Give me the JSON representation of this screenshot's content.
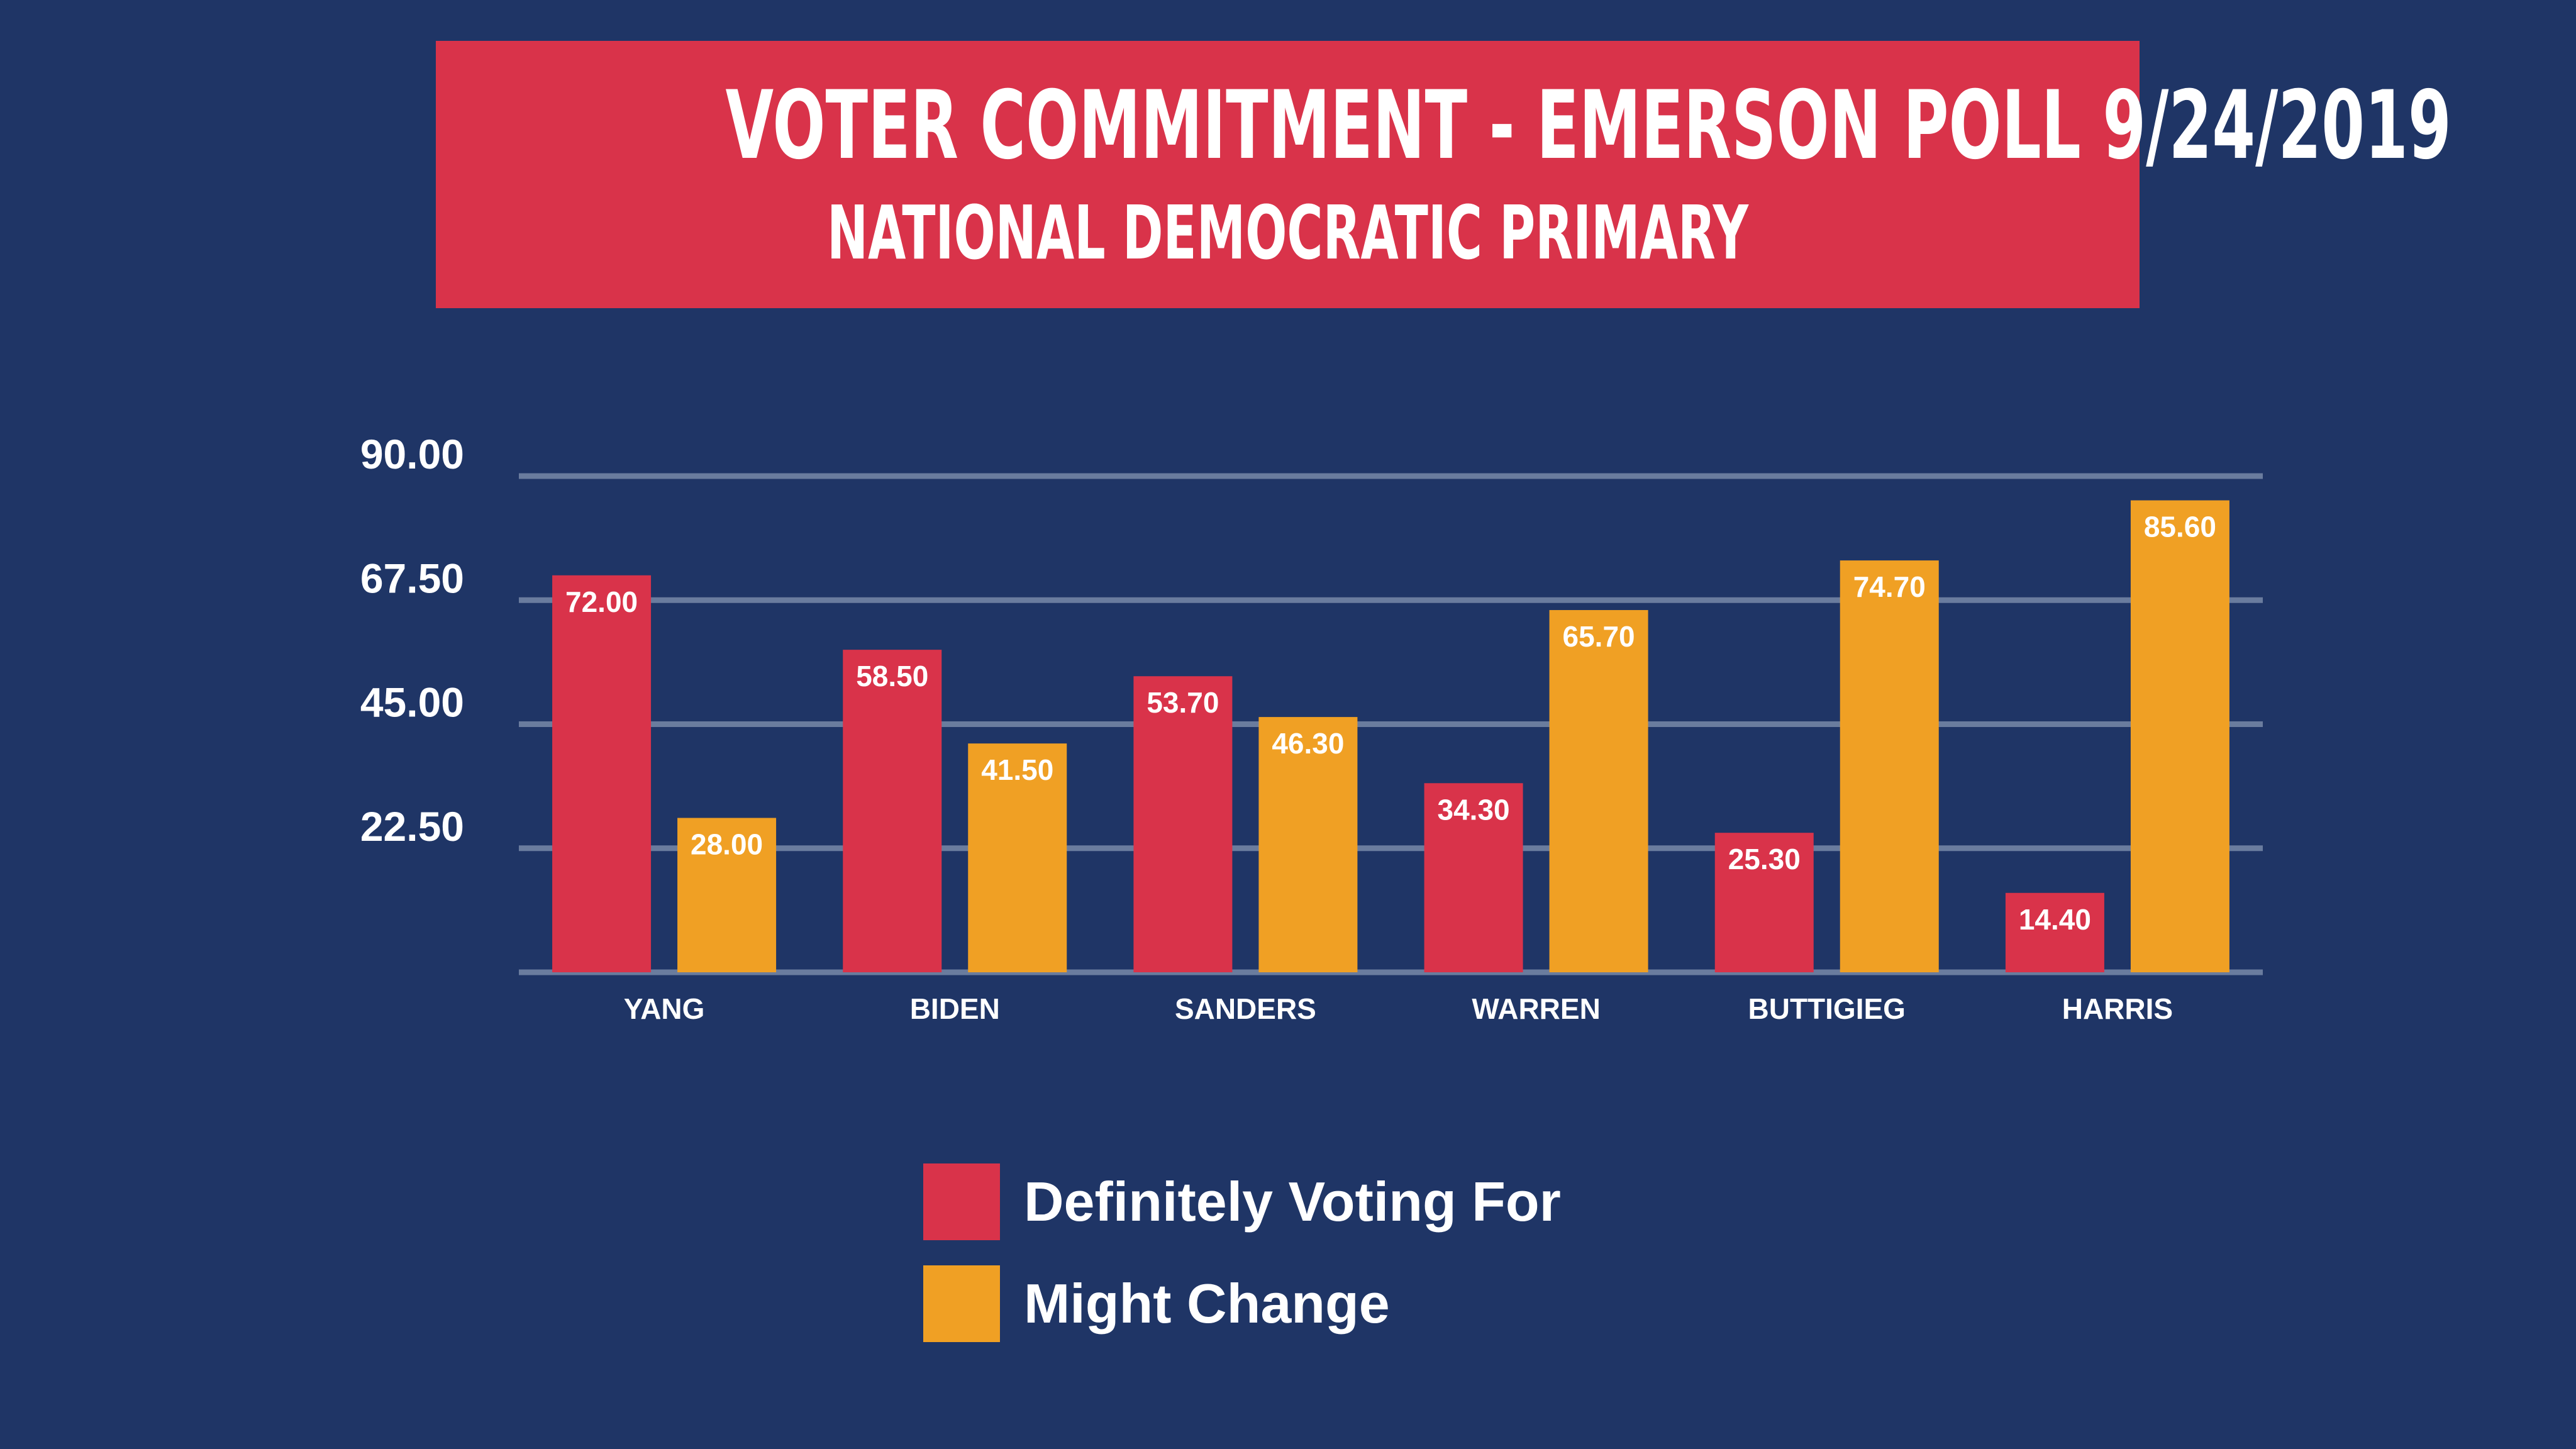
{
  "header": {
    "title": "VOTER COMMITMENT - EMERSON POLL 9/24/2019",
    "subtitle": "NATIONAL DEMOCRATIC PRIMARY"
  },
  "colors": {
    "background": "#1f3566",
    "banner": "#d9334a",
    "definitely": "#d9334a",
    "might_change": "#f0a024",
    "gridline": "#6a7c9e",
    "text": "#ffffff"
  },
  "chart_data": {
    "type": "bar",
    "title": "VOTER COMMITMENT - EMERSON POLL 9/24/2019",
    "subtitle": "NATIONAL DEMOCRATIC PRIMARY",
    "xlabel": "",
    "ylabel": "",
    "categories": [
      "YANG",
      "BIDEN",
      "SANDERS",
      "WARREN",
      "BUTTIGIEG",
      "HARRIS"
    ],
    "series": [
      {
        "name": "Definitely Voting For",
        "values": [
          72.0,
          58.5,
          53.7,
          34.3,
          25.3,
          14.4
        ]
      },
      {
        "name": "Might Change",
        "values": [
          28.0,
          41.5,
          46.3,
          65.7,
          74.7,
          85.6
        ]
      }
    ],
    "value_labels": [
      [
        "72.00",
        "58.50",
        "53.70",
        "34.30",
        "25.30",
        "14.40"
      ],
      [
        "28.00",
        "41.50",
        "46.30",
        "65.70",
        "74.70",
        "85.60"
      ]
    ],
    "yticks": [
      22.5,
      45.0,
      67.5,
      90.0
    ],
    "ytick_labels": [
      "22.50",
      "45.00",
      "67.50",
      "90.00"
    ],
    "ylim": [
      0,
      90
    ],
    "grid": true,
    "legend_position": "bottom-center"
  }
}
